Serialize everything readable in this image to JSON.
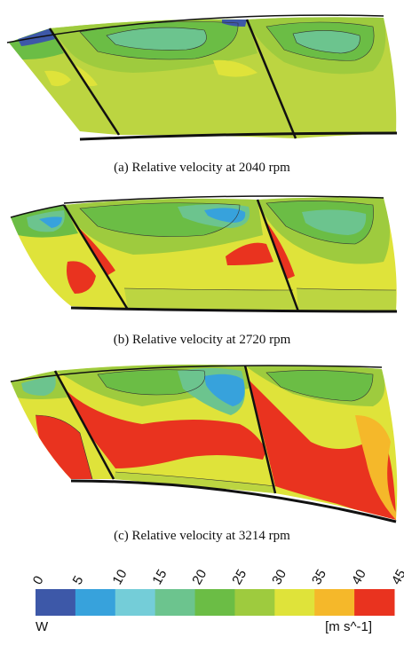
{
  "panels": [
    {
      "caption": "(a) Relative velocity at 2040 rpm",
      "speed_rpm": 2040
    },
    {
      "caption": "(b) Relative velocity at 2720 rpm",
      "speed_rpm": 2720
    },
    {
      "caption": "(c) Relative velocity at 3214 rpm",
      "speed_rpm": 3214
    }
  ],
  "legend": {
    "variable": "W",
    "unit": "[m s^-1]",
    "ticks": [
      "0",
      "5",
      "10",
      "15",
      "20",
      "25",
      "30",
      "35",
      "40",
      "45"
    ],
    "colors": [
      "#3d58a8",
      "#37a2dc",
      "#74cdd8",
      "#6cc48e",
      "#6bbd45",
      "#9ecb3e",
      "#dfe33a",
      "#f5b82a",
      "#e9331f"
    ]
  }
}
